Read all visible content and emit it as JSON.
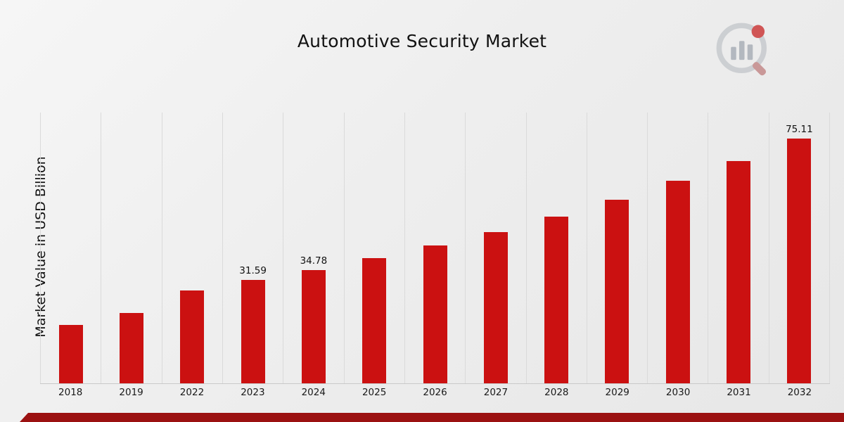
{
  "page": {
    "title": "Automotive Security Market",
    "accent_color": "#9b1111",
    "background_top": "#f6f6f6",
    "background_bottom": "#e7e7e7"
  },
  "chart_data": {
    "type": "bar",
    "title": "Automotive Security Market",
    "xlabel": "",
    "ylabel": "Market Value in USD Billion",
    "categories": [
      "2018",
      "2019",
      "2022",
      "2023",
      "2024",
      "2025",
      "2026",
      "2027",
      "2028",
      "2029",
      "2030",
      "2031",
      "2032"
    ],
    "values": [
      17.9,
      21.5,
      28.5,
      31.59,
      34.78,
      38.3,
      42.2,
      46.4,
      51.1,
      56.3,
      62.0,
      68.2,
      75.11
    ],
    "data_labels": [
      "",
      "",
      "",
      "31.59",
      "34.78",
      "",
      "",
      "",
      "",
      "",
      "",
      "",
      "75.11"
    ],
    "ylim": [
      0,
      83
    ],
    "bar_color": "#cb1111",
    "grid": "vertical-only",
    "legend": "none"
  },
  "icons": {
    "logo": "bar-chart-magnifier-logo"
  }
}
